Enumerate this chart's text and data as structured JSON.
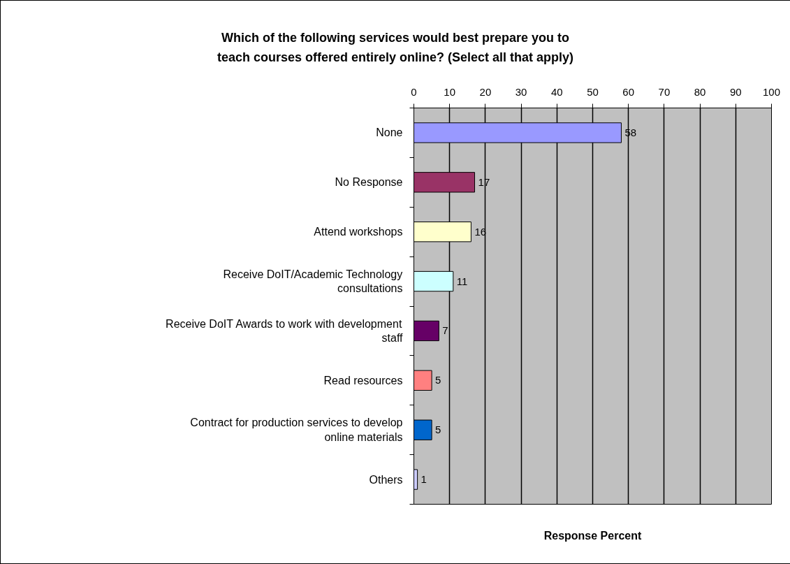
{
  "chart_data": {
    "type": "bar",
    "orientation": "horizontal",
    "title": "Which of the following services would best prepare you to teach courses offered entirely online? (Select all that apply)",
    "xlabel": "Response Percent",
    "categories": [
      "None",
      "No Response",
      "Attend workshops",
      "Receive DoIT/Academic Technology consultations",
      "Receive DoIT Awards to work with development staff",
      "Read resources",
      "Contract for production services to develop online materials",
      "Others"
    ],
    "values": [
      58,
      17,
      16,
      11,
      7,
      5,
      5,
      1
    ],
    "colors": [
      "#9999ff",
      "#993366",
      "#ffffcc",
      "#ccffff",
      "#660066",
      "#ff8080",
      "#0066cc",
      "#ccccff"
    ],
    "xlim": [
      0,
      100
    ],
    "xticks": [
      0,
      10,
      20,
      30,
      40,
      50,
      60,
      70,
      80,
      90,
      100
    ],
    "grid": "x",
    "data_labels": true
  }
}
